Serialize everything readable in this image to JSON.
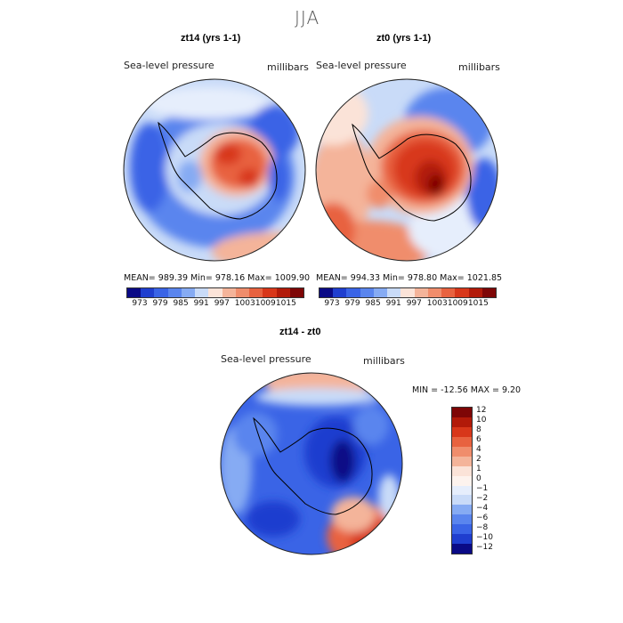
{
  "figure": {
    "season": "JJA"
  },
  "panels": [
    {
      "title": "zt14 (yrs 1-1)",
      "variable": "Sea-level pressure",
      "units": "millibars",
      "stats": "MEAN= 989.39   Min= 978.16   Max= 1009.90",
      "colorbar": {
        "colors": [
          "#0a0a86",
          "#1f3ecf",
          "#3a64e6",
          "#5a85ee",
          "#86abf3",
          "#c9dbf8",
          "#fbe3d8",
          "#f4b49a",
          "#f08d6c",
          "#e8623f",
          "#d8371a",
          "#b21a09",
          "#7e0606"
        ],
        "ticks": [
          "973",
          "979",
          "985",
          "991",
          "997",
          "1003",
          "1009",
          "1015"
        ]
      }
    },
    {
      "title": "zt0 (yrs 1-1)",
      "variable": "Sea-level pressure",
      "units": "millibars",
      "stats": "MEAN= 994.33   Min= 978.80   Max= 1021.85",
      "colorbar": {
        "colors": [
          "#0a0a86",
          "#1f3ecf",
          "#3a64e6",
          "#5a85ee",
          "#86abf3",
          "#c9dbf8",
          "#fbe3d8",
          "#f4b49a",
          "#f08d6c",
          "#e8623f",
          "#d8371a",
          "#b21a09",
          "#7e0606"
        ],
        "ticks": [
          "973",
          "979",
          "985",
          "991",
          "997",
          "1003",
          "1009",
          "1015"
        ]
      }
    },
    {
      "title": "zt14 - zt0",
      "variable": "Sea-level pressure",
      "units": "millibars",
      "stats": "MIN = -12.56 MAX =    9.20",
      "colorbar": {
        "colors": [
          "#7e0606",
          "#b21a09",
          "#d8371a",
          "#e8623f",
          "#f08d6c",
          "#f4b49a",
          "#fbe3d8",
          "#fdf3ee",
          "#e6eefc",
          "#c9dbf8",
          "#86abf3",
          "#5a85ee",
          "#3a64e6",
          "#1f3ecf",
          "#0a0a86"
        ],
        "ticks": [
          "12",
          "10",
          "8",
          "6",
          "4",
          "2",
          "1",
          "0",
          "−1",
          "−2",
          "−4",
          "−6",
          "−8",
          "−10",
          "−12"
        ]
      }
    }
  ]
}
